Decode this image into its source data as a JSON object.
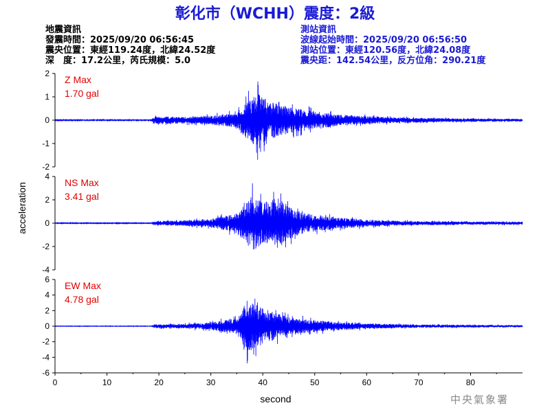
{
  "title": "彰化市（WCHH）震度：2級",
  "info_left": {
    "heading": "地震資訊",
    "origin_time": "發震時間：2025/09/20 06:56:45",
    "epicenter": "震央位置：東經119.24度，北緯24.52度",
    "depth_magnitude": "深　度：17.2公里，芮氏規模：5.0"
  },
  "info_right": {
    "heading": "測站資訊",
    "wave_start": "波線起始時間：2025/09/20 06:56:50",
    "station_location": "測站位置：東經120.56度，北緯24.08度",
    "distance_azimuth": "震央距：142.54公里，反方位角：290.21度"
  },
  "watermark": "中央氣象署",
  "colors": {
    "trace": "#0000ff",
    "title": "#1a1ad4",
    "max_label": "#e00000"
  },
  "chart_data": {
    "type": "line",
    "xlabel": "second",
    "ylabel": "acceleration",
    "xlim": [
      0,
      90
    ],
    "x_ticks": [
      0,
      10,
      20,
      30,
      40,
      50,
      60,
      70,
      80
    ],
    "grid": false,
    "panels": [
      {
        "component": "Z",
        "label": "Z Max",
        "max_value": "1.70 gal",
        "peak": 1.7,
        "ylim": [
          -2,
          2
        ],
        "y_ticks": [
          2,
          1,
          0,
          -1,
          -2
        ],
        "envelope": [
          [
            0,
            0.03
          ],
          [
            18.5,
            0.03
          ],
          [
            19,
            0.22
          ],
          [
            25,
            0.2
          ],
          [
            30,
            0.28
          ],
          [
            35,
            0.45
          ],
          [
            37,
            1.2
          ],
          [
            39,
            1.7
          ],
          [
            41,
            1.2
          ],
          [
            43,
            1.0
          ],
          [
            46,
            0.75
          ],
          [
            50,
            0.55
          ],
          [
            55,
            0.35
          ],
          [
            60,
            0.25
          ],
          [
            65,
            0.18
          ],
          [
            70,
            0.14
          ],
          [
            80,
            0.1
          ],
          [
            90,
            0.08
          ]
        ]
      },
      {
        "component": "NS",
        "label": "NS Max",
        "max_value": "3.41 gal",
        "peak": 3.41,
        "ylim": [
          -4,
          4
        ],
        "y_ticks": [
          4,
          2,
          0,
          -2,
          -4
        ],
        "envelope": [
          [
            0,
            0.04
          ],
          [
            18.5,
            0.04
          ],
          [
            19,
            0.25
          ],
          [
            25,
            0.35
          ],
          [
            30,
            0.55
          ],
          [
            35,
            1.2
          ],
          [
            38,
            3.41
          ],
          [
            40,
            2.5
          ],
          [
            43,
            3.1
          ],
          [
            46,
            1.6
          ],
          [
            50,
            1.0
          ],
          [
            55,
            0.65
          ],
          [
            60,
            0.45
          ],
          [
            65,
            0.3
          ],
          [
            70,
            0.25
          ],
          [
            80,
            0.2
          ],
          [
            90,
            0.18
          ]
        ]
      },
      {
        "component": "EW",
        "label": "EW Max",
        "max_value": "4.78 gal",
        "peak": 4.78,
        "ylim": [
          -6,
          6
        ],
        "y_ticks": [
          6,
          4,
          2,
          0,
          -2,
          -4,
          -6
        ],
        "envelope": [
          [
            0,
            0.04
          ],
          [
            18.5,
            0.04
          ],
          [
            19,
            0.35
          ],
          [
            25,
            0.45
          ],
          [
            30,
            0.65
          ],
          [
            35,
            1.5
          ],
          [
            37,
            4.78
          ],
          [
            39,
            3.8
          ],
          [
            42,
            2.6
          ],
          [
            45,
            1.6
          ],
          [
            50,
            1.1
          ],
          [
            55,
            0.7
          ],
          [
            60,
            0.5
          ],
          [
            65,
            0.4
          ],
          [
            70,
            0.3
          ],
          [
            80,
            0.25
          ],
          [
            90,
            0.2
          ]
        ]
      }
    ]
  }
}
